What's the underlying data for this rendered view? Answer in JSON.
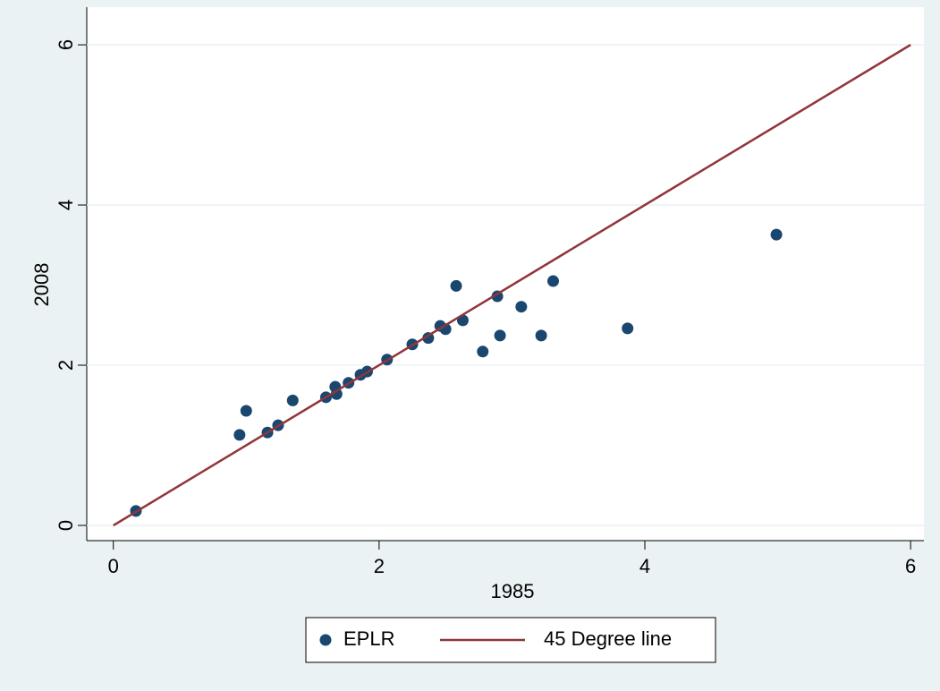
{
  "chart_data": {
    "type": "scatter",
    "x_label": "1985",
    "y_label": "2008",
    "xlim": [
      -0.2,
      6.1
    ],
    "ylim": [
      -0.19,
      6.47
    ],
    "xticks": [
      0,
      2,
      4,
      6
    ],
    "yticks": [
      0,
      2,
      4,
      6
    ],
    "grid": true,
    "series": [
      {
        "name": "EPLR",
        "type": "scatter",
        "color": "#1a476f",
        "x": [
          0.17,
          0.95,
          1.0,
          1.16,
          1.24,
          1.35,
          1.6,
          1.67,
          1.68,
          1.77,
          1.86,
          1.91,
          2.06,
          2.25,
          2.37,
          2.46,
          2.5,
          2.58,
          2.63,
          2.78,
          2.89,
          2.91,
          3.07,
          3.22,
          3.31,
          3.87,
          4.99
        ],
        "values": [
          0.18,
          1.13,
          1.43,
          1.16,
          1.25,
          1.56,
          1.6,
          1.73,
          1.64,
          1.78,
          1.88,
          1.92,
          2.07,
          2.26,
          2.34,
          2.49,
          2.45,
          2.99,
          2.56,
          2.17,
          2.86,
          2.37,
          2.73,
          2.37,
          3.05,
          2.46,
          3.63
        ]
      },
      {
        "name": "45 Degree line",
        "type": "line",
        "color": "#90353b",
        "x": [
          0,
          6
        ],
        "values": [
          0,
          6
        ]
      }
    ],
    "legend": "bottom"
  }
}
